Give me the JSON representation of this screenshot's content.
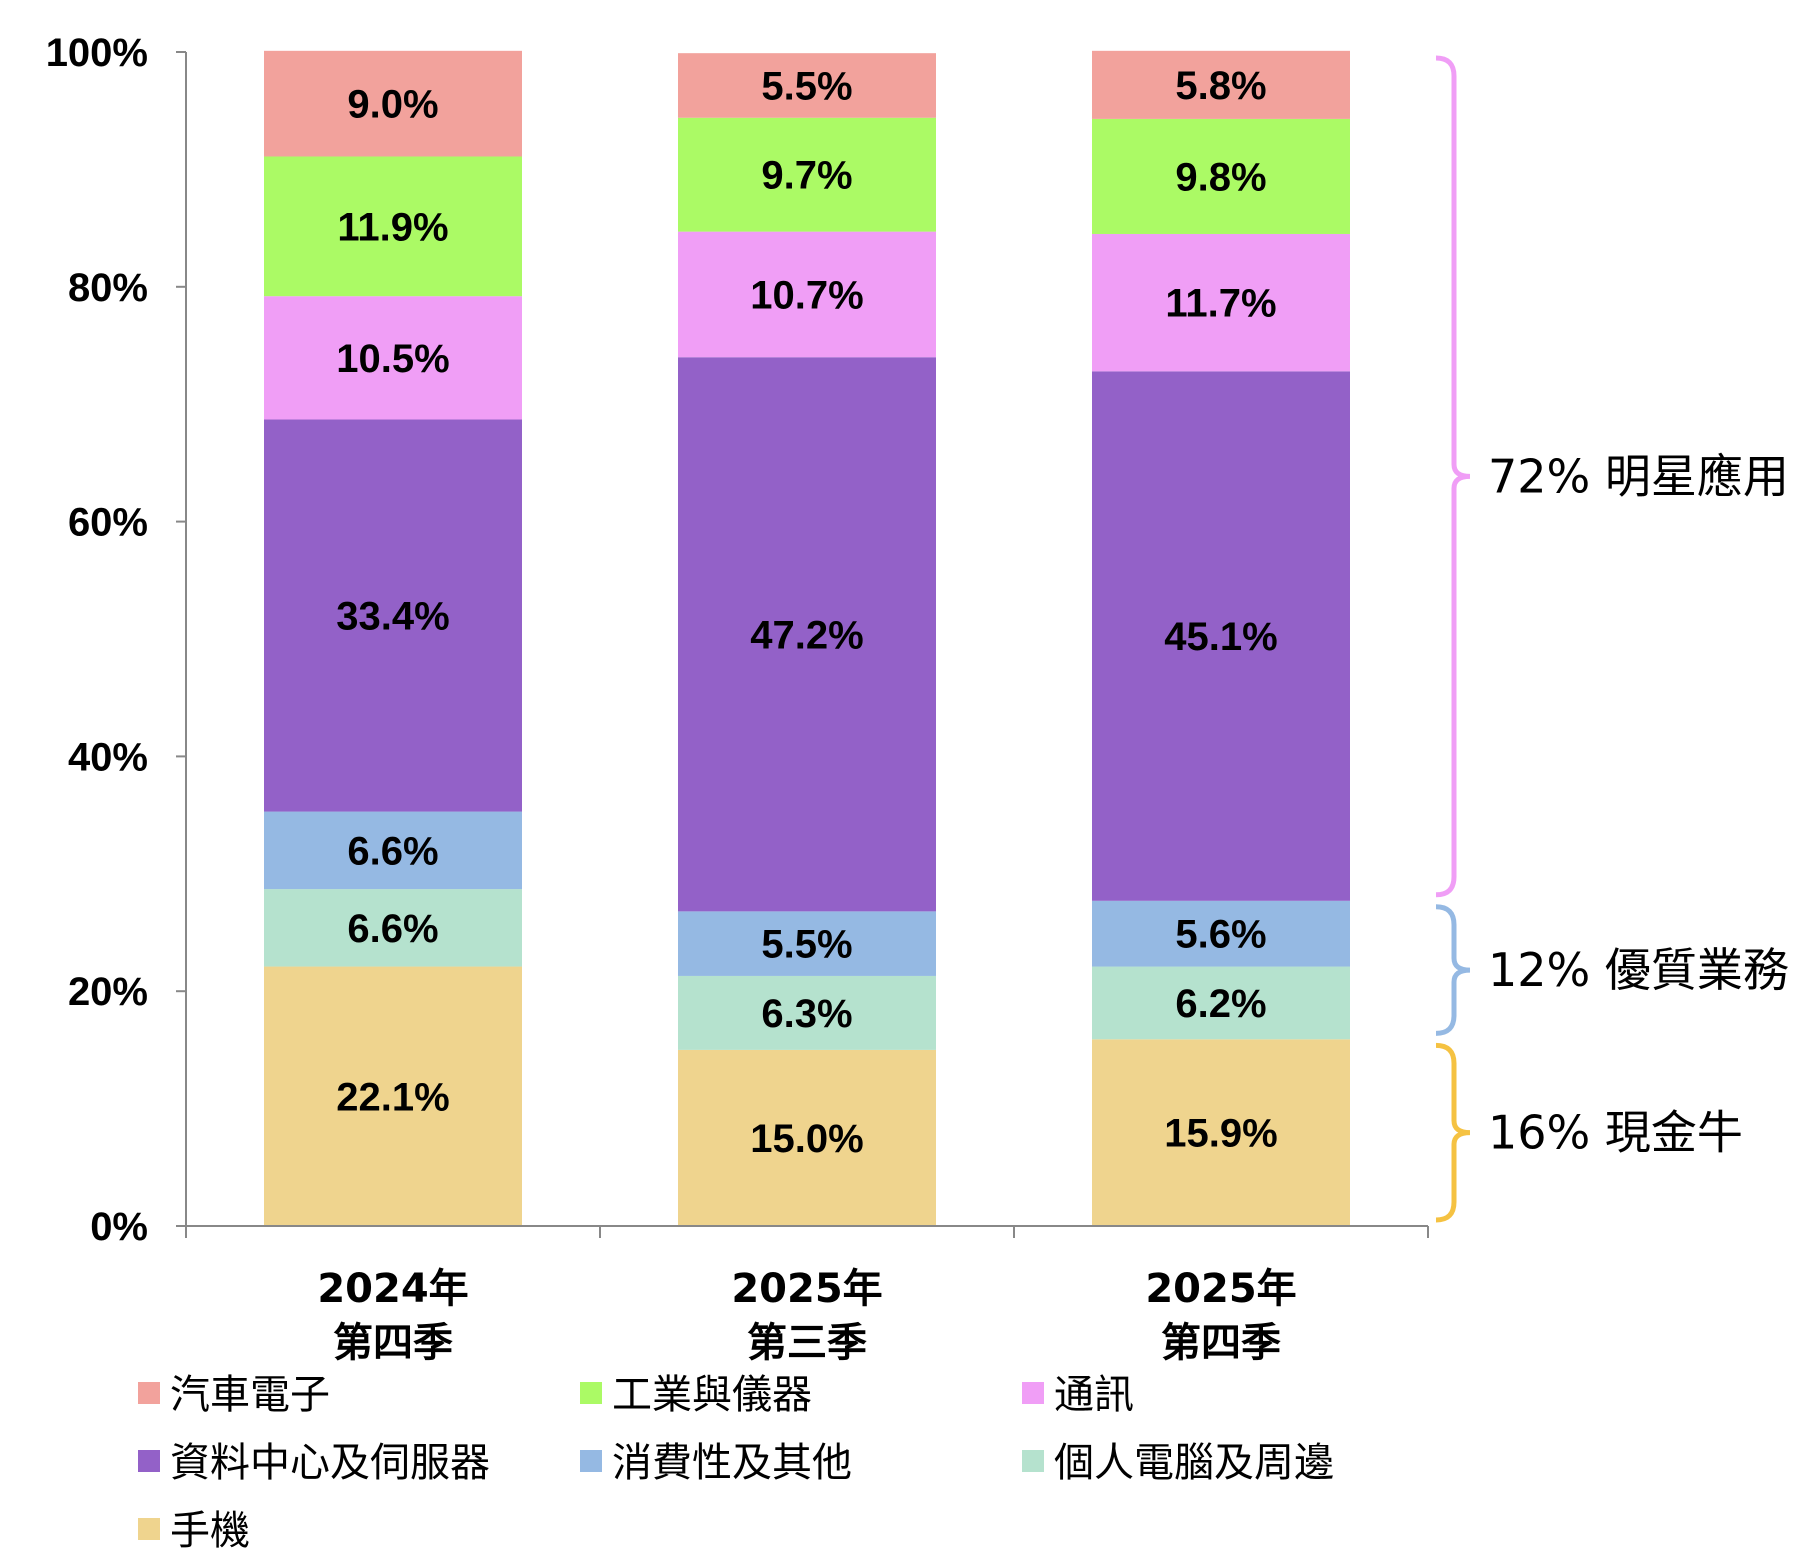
{
  "chart_data": {
    "type": "bar",
    "stacked": true,
    "categories": [
      [
        "2024年",
        "第四季"
      ],
      [
        "2025年",
        "第三季"
      ],
      [
        "2025年",
        "第四季"
      ]
    ],
    "ylim": [
      0,
      100
    ],
    "yticks": [
      "0%",
      "20%",
      "40%",
      "60%",
      "80%",
      "100%"
    ],
    "grid": false,
    "legend_placement": "bottom",
    "series": [
      {
        "name": "手機",
        "color": "#EFD48E",
        "values": [
          22.1,
          15.0,
          15.9
        ],
        "labels": [
          "22.1%",
          "15.0%",
          "15.9%"
        ]
      },
      {
        "name": "個人電腦及周邊",
        "color": "#B5E2CE",
        "values": [
          6.6,
          6.3,
          6.2
        ],
        "labels": [
          "6.6%",
          "6.3%",
          "6.2%"
        ]
      },
      {
        "name": "消費性及其他",
        "color": "#95B9E3",
        "values": [
          6.6,
          5.5,
          5.6
        ],
        "labels": [
          "6.6%",
          "5.5%",
          "5.6%"
        ]
      },
      {
        "name": "資料中心及伺服器",
        "color": "#9361C8",
        "values": [
          33.4,
          47.2,
          45.1
        ],
        "labels": [
          "33.4%",
          "47.2%",
          "45.1%"
        ]
      },
      {
        "name": "通訊",
        "color": "#F09EF6",
        "values": [
          10.5,
          10.7,
          11.7
        ],
        "labels": [
          "10.5%",
          "10.7%",
          "11.7%"
        ]
      },
      {
        "name": "工業與儀器",
        "color": "#ABFA65",
        "values": [
          11.9,
          9.7,
          9.8
        ],
        "labels": [
          "11.9%",
          "9.7%",
          "9.8%"
        ]
      },
      {
        "name": "汽車電子",
        "color": "#F2A29C",
        "values": [
          9.0,
          5.5,
          5.8
        ],
        "labels": [
          "9.0%",
          "5.5%",
          "5.8%"
        ]
      }
    ],
    "legend_order": [
      "汽車電子",
      "工業與儀器",
      "通訊",
      "資料中心及伺服器",
      "消費性及其他",
      "個人電腦及周邊",
      "手機"
    ],
    "annotations": [
      {
        "label": "72% 明星應用",
        "from": 27.7,
        "to": 100,
        "color": "#F09EF6"
      },
      {
        "label": "12% 優質業務",
        "from": 15.9,
        "to": 27.7,
        "color": "#95B9E3"
      },
      {
        "label": "16% 現金牛",
        "from": 0,
        "to": 15.9,
        "color": "#F5C242"
      }
    ]
  }
}
